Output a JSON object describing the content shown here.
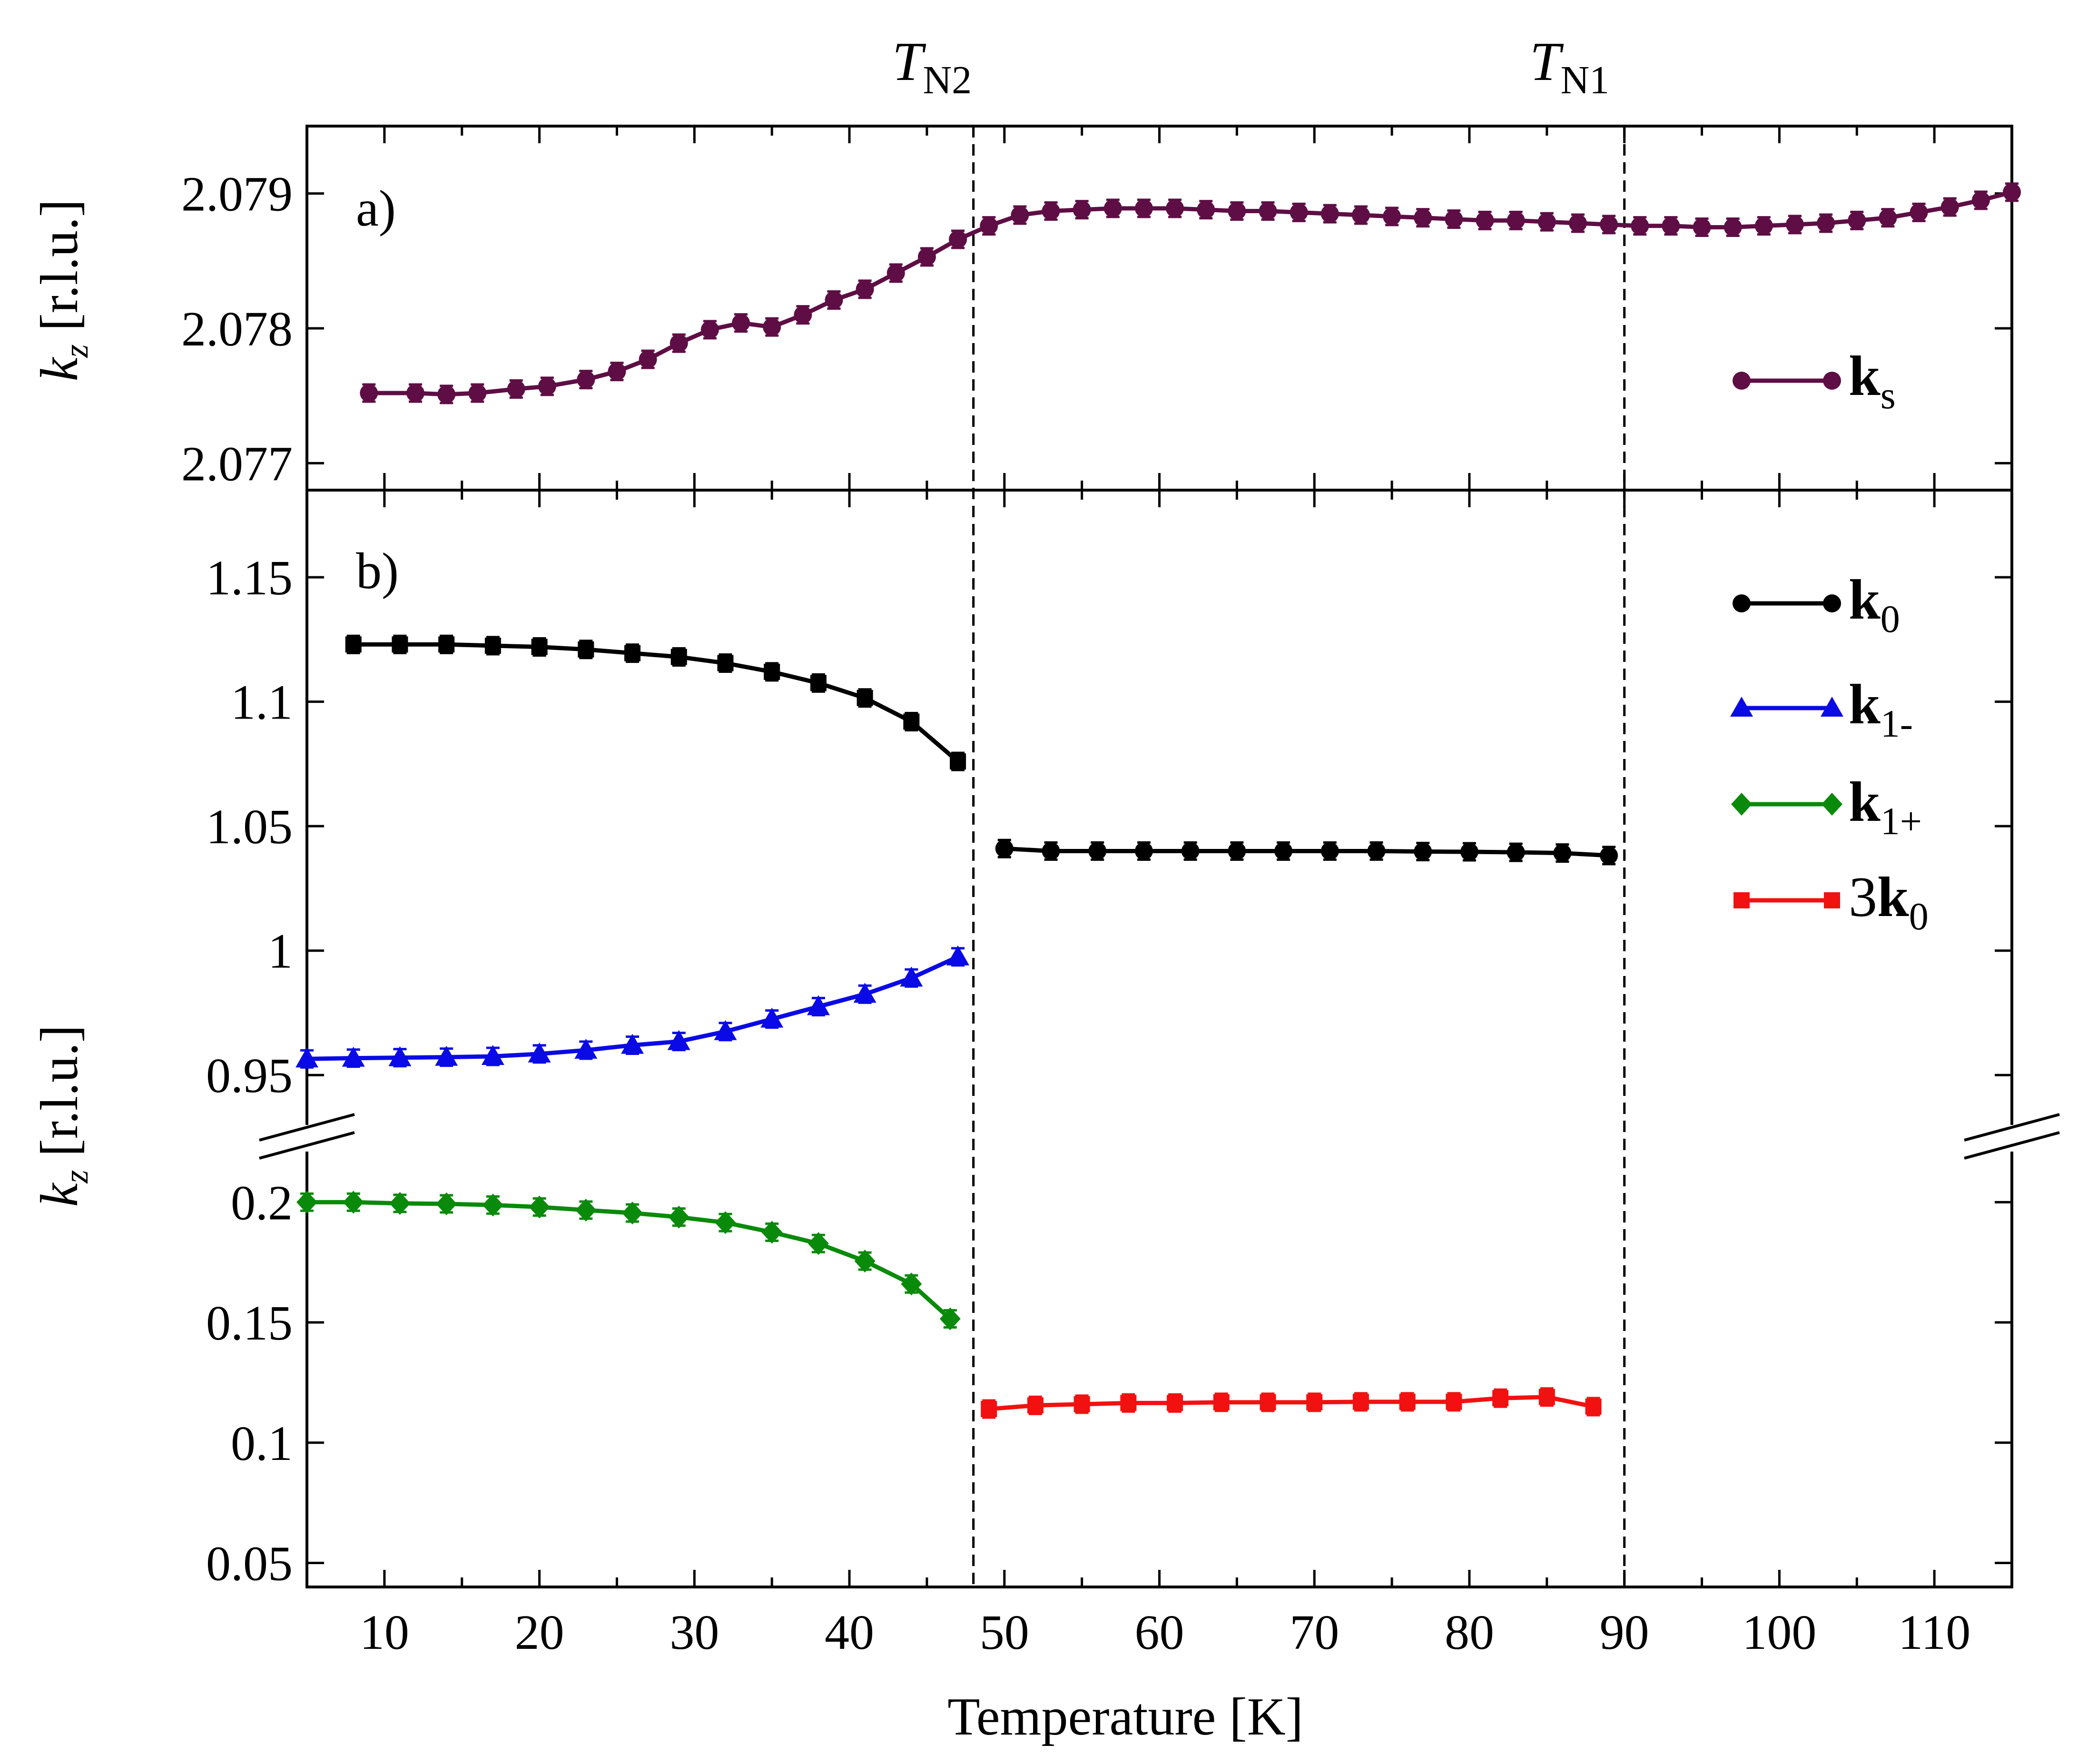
{
  "chart_data": [
    {
      "panel": "a)",
      "type": "line",
      "xlabel": "Temperature [K]",
      "ylabel_var": "k",
      "ylabel_sub": "z",
      "ylabel_unit": "[r.l.u.]",
      "xlim": [
        5,
        115
      ],
      "ylim": [
        2.0768,
        2.0795
      ],
      "xticks": [
        10,
        20,
        30,
        40,
        50,
        60,
        70,
        80,
        90,
        100,
        110
      ],
      "yticks": [
        {
          "value": 2.077,
          "label": "2.077"
        },
        {
          "value": 2.078,
          "label": "2.078"
        },
        {
          "value": 2.079,
          "label": "2.079"
        }
      ],
      "series": [
        {
          "name": "ks",
          "label_main": "k",
          "label_sub": "s",
          "bold": true,
          "color": "#5e0e44",
          "marker": "circle",
          "x": [
            9,
            12,
            14,
            16,
            18.5,
            20.5,
            23,
            25,
            27,
            29,
            31,
            33,
            35,
            37,
            39,
            41,
            43,
            45,
            47,
            49,
            51,
            53,
            55,
            57,
            59,
            61,
            63,
            65,
            67,
            69,
            71,
            73,
            75,
            77,
            79,
            81,
            83,
            85,
            87,
            89,
            91,
            93,
            95,
            97,
            99,
            101,
            103,
            105,
            107,
            109,
            111,
            113,
            115
          ],
          "y": [
            2.07752,
            2.07752,
            2.07751,
            2.07752,
            2.07755,
            2.07757,
            2.07762,
            2.07768,
            2.07777,
            2.07789,
            2.07799,
            2.07804,
            2.07801,
            2.0781,
            2.07821,
            2.07829,
            2.07841,
            2.07853,
            2.07866,
            2.07876,
            2.07884,
            2.07887,
            2.07888,
            2.07889,
            2.07889,
            2.07889,
            2.07888,
            2.07887,
            2.07887,
            2.07886,
            2.07885,
            2.07884,
            2.07883,
            2.07882,
            2.07881,
            2.0788,
            2.0788,
            2.07879,
            2.07878,
            2.07877,
            2.07876,
            2.07876,
            2.07875,
            2.07875,
            2.07876,
            2.07877,
            2.07878,
            2.0788,
            2.07882,
            2.07886,
            2.0789,
            2.07895,
            2.07901
          ]
        }
      ]
    },
    {
      "panel": "b)",
      "type": "line",
      "broken_axis": true,
      "xlabel": "Temperature [K]",
      "ylabel_var": "k",
      "ylabel_sub": "z",
      "ylabel_unit": "[r.l.u.]",
      "xlim": [
        5,
        115
      ],
      "ylim_upper": [
        0.925,
        1.185
      ],
      "ylim_lower": [
        0.04,
        0.225
      ],
      "xticks": [
        10,
        20,
        30,
        40,
        50,
        60,
        70,
        80,
        90,
        100,
        110
      ],
      "yticks_upper": [
        {
          "value": 0.95,
          "label": "0.95"
        },
        {
          "value": 1.0,
          "label": "1"
        },
        {
          "value": 1.05,
          "label": "1.05"
        },
        {
          "value": 1.1,
          "label": "1.1"
        },
        {
          "value": 1.15,
          "label": "1.15"
        }
      ],
      "yticks_lower": [
        {
          "value": 0.05,
          "label": "0.05"
        },
        {
          "value": 0.1,
          "label": "0.1"
        },
        {
          "value": 0.15,
          "label": "0.15"
        },
        {
          "value": 0.2,
          "label": "0.2"
        }
      ],
      "series": [
        {
          "name": "k0 (low T)",
          "label_main": "k",
          "label_sub": "0",
          "bold": true,
          "color": "#000000",
          "marker": "square",
          "axis": "upper",
          "legend": true,
          "x": [
            8,
            11,
            14,
            17,
            20,
            23,
            26,
            29,
            32,
            35,
            38,
            41,
            44,
            47
          ],
          "y": [
            1.123,
            1.123,
            1.123,
            1.1225,
            1.122,
            1.121,
            1.1195,
            1.118,
            1.1155,
            1.112,
            1.1075,
            1.1015,
            1.092,
            1.076
          ]
        },
        {
          "name": "k0 (high T)",
          "label_main": "k",
          "label_sub": "0",
          "bold": true,
          "color": "#000000",
          "marker": "circle",
          "axis": "upper",
          "legend": false,
          "x": [
            50,
            53,
            56,
            59,
            62,
            65,
            68,
            71,
            74,
            77,
            80,
            83,
            86,
            89
          ],
          "y": [
            1.041,
            1.04,
            1.04,
            1.04,
            1.04,
            1.04,
            1.04,
            1.04,
            1.04,
            1.0398,
            1.0397,
            1.0395,
            1.0392,
            1.0382
          ]
        },
        {
          "name": "k1-",
          "label_main": "k",
          "label_sub": "1-",
          "bold": true,
          "color": "#0a0ae6",
          "marker": "triangle",
          "axis": "upper",
          "legend": true,
          "x": [
            5,
            8,
            11,
            14,
            17,
            20,
            23,
            26,
            29,
            32,
            35,
            38,
            41,
            44,
            47
          ],
          "y": [
            0.9565,
            0.9568,
            0.957,
            0.9572,
            0.9575,
            0.9585,
            0.96,
            0.962,
            0.9635,
            0.9675,
            0.9725,
            0.9775,
            0.9825,
            0.989,
            0.9975
          ]
        },
        {
          "name": "k1+",
          "label_main": "k",
          "label_sub": "1+",
          "bold": true,
          "color": "#0a8a0a",
          "marker": "diamond",
          "axis": "lower",
          "legend": true,
          "x": [
            5,
            8,
            11,
            14,
            17,
            20,
            23,
            26,
            29,
            32,
            35,
            38,
            41,
            44,
            46.5
          ],
          "y": [
            0.2,
            0.2,
            0.1995,
            0.1993,
            0.1988,
            0.198,
            0.1967,
            0.1955,
            0.1938,
            0.1915,
            0.1875,
            0.1828,
            0.1755,
            0.166,
            0.1515
          ]
        },
        {
          "name": "3k0",
          "label_main": "3k",
          "label_sub": "0",
          "bold": true,
          "color": "#f21111",
          "marker": "square",
          "axis": "lower",
          "legend": true,
          "x": [
            49,
            52,
            55,
            58,
            61,
            64,
            67,
            70,
            73,
            76,
            79,
            82,
            85,
            88
          ],
          "y": [
            0.114,
            0.1155,
            0.116,
            0.1165,
            0.1165,
            0.1168,
            0.1168,
            0.1168,
            0.117,
            0.117,
            0.117,
            0.1185,
            0.119,
            0.115
          ]
        }
      ]
    }
  ],
  "annotations": {
    "tn2": {
      "symbol": "T",
      "sub": "N2",
      "x": 48
    },
    "tn1": {
      "symbol": "T",
      "sub": "N1",
      "x": 90
    }
  }
}
